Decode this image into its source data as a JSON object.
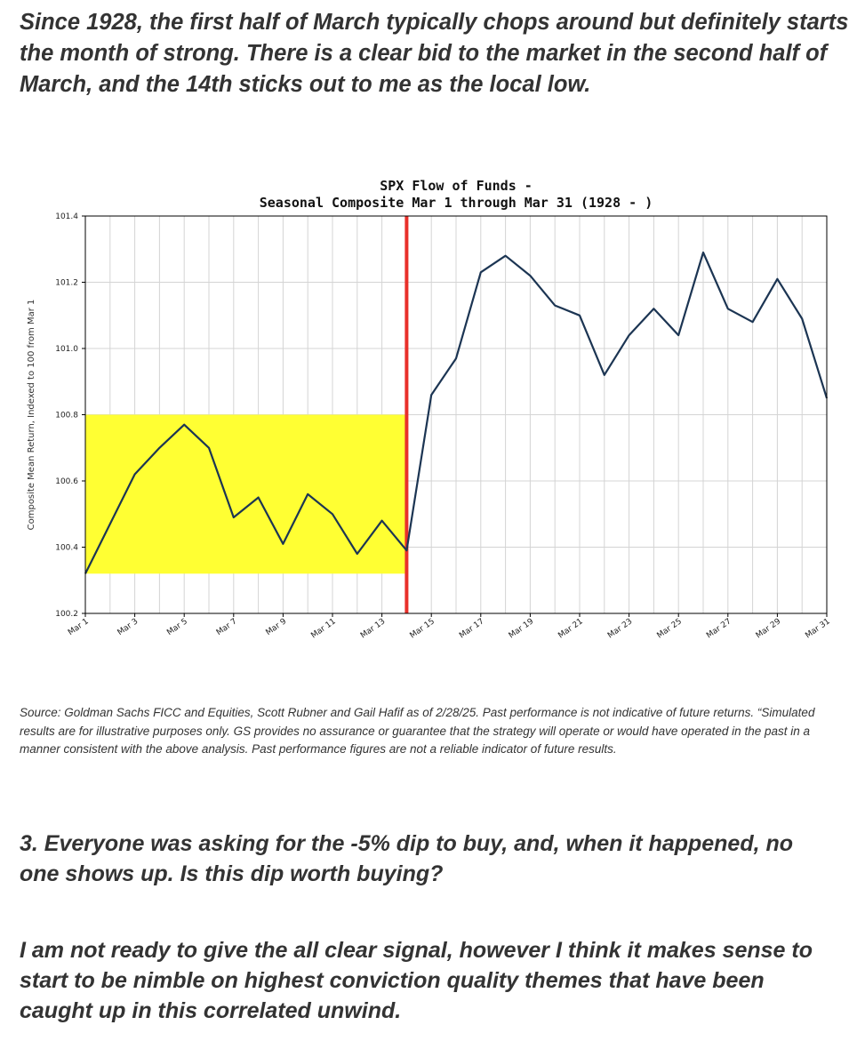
{
  "intro_text": "Since 1928, the first half of March typically chops around but definitely starts the month of strong. There is a clear bid to the market in the second half of March, and the 14th sticks out to me as the local low.",
  "source_note": "Source: Goldman Sachs FICC and Equities, Scott Rubner and Gail Hafif as of 2/28/25. Past performance is not indicative of future returns. “Simulated results are for illustrative purposes only. GS provides no assurance or guarantee that the strategy will operate or would have operated in the past in a manner consistent with the above analysis. Past performance figures are not a reliable indicator of future results.",
  "question_3": "3. Everyone was asking for the -5% dip to buy, and, when it happened, no one shows up. Is this dip worth buying?",
  "answer_3": "I am not ready to give the all clear signal, however I think it makes sense to start to be nimble on highest conviction quality themes that have been caught up in this correlated unwind.",
  "chart_data": {
    "type": "line",
    "title": "SPX Flow of Funds -",
    "subtitle": "Seasonal Composite Mar 1 through Mar 31 (1928 - )",
    "xlabel": "",
    "ylabel": "Composite Mean Return, Indexed to 100 from Mar 1",
    "x": [
      1,
      2,
      3,
      4,
      5,
      6,
      7,
      8,
      9,
      10,
      11,
      12,
      13,
      14,
      15,
      16,
      17,
      18,
      19,
      20,
      21,
      22,
      23,
      24,
      25,
      26,
      27,
      28,
      29,
      30,
      31
    ],
    "values": [
      100.32,
      100.47,
      100.62,
      100.7,
      100.77,
      100.7,
      100.49,
      100.55,
      100.41,
      100.56,
      100.5,
      100.38,
      100.48,
      100.39,
      100.86,
      100.97,
      101.23,
      101.28,
      101.22,
      101.13,
      101.1,
      100.92,
      101.04,
      101.12,
      101.04,
      101.29,
      101.12,
      101.08,
      101.21,
      101.09,
      100.85
    ],
    "xticks": [
      1,
      3,
      5,
      7,
      9,
      11,
      13,
      15,
      17,
      19,
      21,
      23,
      25,
      27,
      29,
      31
    ],
    "xtick_labels": [
      "Mar 1",
      "Mar 3",
      "Mar 5",
      "Mar 7",
      "Mar 9",
      "Mar 11",
      "Mar 13",
      "Mar 15",
      "Mar 17",
      "Mar 19",
      "Mar 21",
      "Mar 23",
      "Mar 25",
      "Mar 27",
      "Mar 29",
      "Mar 31"
    ],
    "yticks": [
      100.2,
      100.4,
      100.6,
      100.8,
      101.0,
      101.2,
      101.4
    ],
    "ytick_labels": [
      "100.2",
      "100.4",
      "100.6",
      "100.8",
      "101.0",
      "101.2",
      "101.4"
    ],
    "xlim": [
      1,
      31
    ],
    "ylim": [
      100.2,
      101.4
    ],
    "grid": true,
    "highlight_region": {
      "x_from": 1,
      "x_to": 14,
      "y_from": 100.32,
      "y_to": 100.8,
      "color": "#ffff33"
    },
    "vertical_marker": {
      "x": 14,
      "color": "#e8302a"
    },
    "line_color": "#1c3553"
  }
}
